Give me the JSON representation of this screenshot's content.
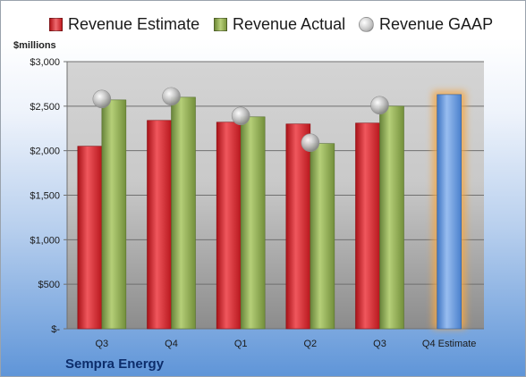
{
  "legend": {
    "estimate": "Revenue Estimate",
    "actual": "Revenue Actual",
    "gaap": "Revenue GAAP"
  },
  "company": "Sempra Energy",
  "colors": {
    "estimate": "#d42027",
    "actual": "#8fac4a",
    "gaap": "#b0b0b0",
    "forecast": "#5b8fd6",
    "forecast_glow": "#f3a746"
  },
  "chart_data": {
    "type": "bar",
    "ylabel": "$millions",
    "ylim": [
      0,
      3000
    ],
    "yticks": [
      {
        "value": 0,
        "label": "$-"
      },
      {
        "value": 500,
        "label": "$500"
      },
      {
        "value": 1000,
        "label": "$1,000"
      },
      {
        "value": 1500,
        "label": "$1,500"
      },
      {
        "value": 2000,
        "label": "$2,000"
      },
      {
        "value": 2500,
        "label": "$2,500"
      },
      {
        "value": 3000,
        "label": "$3,000"
      }
    ],
    "grid": true,
    "legend_position": "top",
    "categories": [
      "Q3",
      "Q4",
      "Q1",
      "Q2",
      "Q3",
      "Q4 Estimate"
    ],
    "series": [
      {
        "name": "Revenue Estimate",
        "type": "bar",
        "values": [
          2050,
          2340,
          2320,
          2300,
          2310,
          null
        ]
      },
      {
        "name": "Revenue Actual",
        "type": "bar",
        "values": [
          2570,
          2600,
          2380,
          2080,
          2500,
          null
        ]
      },
      {
        "name": "Revenue GAAP",
        "type": "marker",
        "values": [
          2580,
          2610,
          2390,
          2090,
          2510,
          null
        ]
      },
      {
        "name": "Q4 Estimate",
        "type": "bar",
        "values": [
          null,
          null,
          null,
          null,
          null,
          2630
        ]
      }
    ]
  }
}
